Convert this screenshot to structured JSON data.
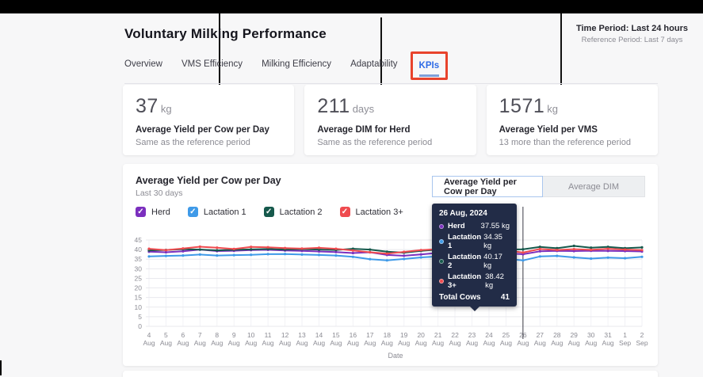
{
  "page": {
    "title": "Voluntary Milking Performance"
  },
  "time_period": {
    "label": "Time Period: Last 24 hours",
    "reference": "Reference Period: Last 7 days"
  },
  "tabs": [
    {
      "label": "Overview",
      "active": false
    },
    {
      "label": "VMS Efficiency",
      "active": false
    },
    {
      "label": "Milking Efficiency",
      "active": false
    },
    {
      "label": "Adaptability",
      "active": false
    },
    {
      "label": "KPIs",
      "active": true,
      "highlighted": true
    }
  ],
  "kpi_cards": [
    {
      "value": "37",
      "unit": "kg",
      "label": "Average Yield per Cow per Day",
      "comparison": "Same as the reference period"
    },
    {
      "value": "211",
      "unit": "days",
      "label": "Average DIM for Herd",
      "comparison": "Same as the reference period"
    },
    {
      "value": "1571",
      "unit": "kg",
      "label": "Average Yield per VMS",
      "comparison": "13 more than the reference period"
    }
  ],
  "chart_panel": {
    "title": "Average Yield per Cow per Day",
    "subtitle": "Last 30 days",
    "toggle": [
      {
        "label": "Average Yield per Cow per Day",
        "active": true
      },
      {
        "label": "Average DIM",
        "active": false
      }
    ],
    "legend": [
      {
        "label": "Herd",
        "checked": true
      },
      {
        "label": "Lactation 1",
        "checked": true
      },
      {
        "label": "Lactation 2",
        "checked": true
      },
      {
        "label": "Lactation 3+",
        "checked": true
      }
    ],
    "checkmark": "✓",
    "tooltip": {
      "title": "26 Aug, 2024",
      "rows": [
        {
          "name": "Herd",
          "value": "37.55 kg"
        },
        {
          "name": "Lactation 1",
          "value": "34.35 kg"
        },
        {
          "name": "Lactation 2",
          "value": "40.17 kg"
        },
        {
          "name": "Lactation 3+",
          "value": "38.42 kg"
        }
      ],
      "total_label": "Total Cows",
      "total_value": "41"
    }
  },
  "chart_data": {
    "type": "line",
    "title": "Average Yield per Cow per Day",
    "subtitle": "Last 30 days",
    "xlabel": "Date",
    "ylabel": "",
    "ylim": [
      0,
      45
    ],
    "ytick_step": 5,
    "grid": true,
    "legend_position": "top-left",
    "hover_index": 22,
    "x": [
      "4 Aug",
      "5 Aug",
      "6 Aug",
      "7 Aug",
      "8 Aug",
      "9 Aug",
      "10 Aug",
      "11 Aug",
      "12 Aug",
      "13 Aug",
      "14 Aug",
      "15 Aug",
      "16 Aug",
      "17 Aug",
      "18 Aug",
      "19 Aug",
      "20 Aug",
      "21 Aug",
      "22 Aug",
      "23 Aug",
      "24 Aug",
      "25 Aug",
      "26 Aug",
      "27 Aug",
      "28 Aug",
      "29 Aug",
      "30 Aug",
      "31 Aug",
      "1 Sep",
      "2 Sep"
    ],
    "series": [
      {
        "name": "Herd",
        "color": "#7b2fbe",
        "values": [
          38.9,
          38.6,
          39.1,
          40.0,
          39.2,
          39.4,
          39.7,
          39.9,
          39.5,
          39.3,
          39.0,
          38.7,
          38.2,
          38.6,
          37.2,
          36.8,
          37.5,
          38.3,
          38.7,
          38.9,
          38.5,
          38.1,
          37.55,
          39.1,
          39.3,
          39.2,
          39.4,
          39.3,
          39.2,
          39.0
        ]
      },
      {
        "name": "Lactation 1",
        "color": "#3f9ae8",
        "values": [
          36.4,
          36.7,
          36.9,
          37.4,
          36.9,
          37.1,
          37.3,
          37.6,
          37.7,
          37.4,
          37.2,
          36.9,
          36.2,
          35.0,
          34.4,
          35.1,
          35.9,
          36.4,
          36.2,
          35.9,
          35.7,
          35.2,
          34.35,
          36.4,
          36.7,
          35.9,
          35.3,
          35.8,
          35.5,
          36.2
        ]
      },
      {
        "name": "Lactation 2",
        "color": "#16594c",
        "values": [
          39.6,
          39.8,
          40.2,
          40.0,
          39.6,
          39.9,
          40.1,
          40.3,
          40.0,
          40.2,
          40.0,
          39.8,
          40.4,
          40.0,
          38.9,
          38.4,
          39.3,
          40.0,
          40.4,
          40.1,
          40.3,
          40.0,
          40.17,
          41.4,
          40.7,
          41.9,
          41.0,
          41.4,
          40.7,
          41.1
        ]
      },
      {
        "name": "Lactation 3+",
        "color": "#ef4b4f",
        "values": [
          40.4,
          39.7,
          40.6,
          41.5,
          41.0,
          40.3,
          41.4,
          41.2,
          40.8,
          40.5,
          40.9,
          40.4,
          39.5,
          38.6,
          37.9,
          38.8,
          39.7,
          40.2,
          40.6,
          40.3,
          40.0,
          39.6,
          38.42,
          40.3,
          39.8,
          40.2,
          39.9,
          40.4,
          40.0,
          39.7
        ]
      }
    ]
  },
  "colors": {
    "tab_active": "#2e6be6",
    "annotation_box": "#e8432c",
    "tooltip_bg": "#222c47",
    "grid_line": "#e9e9ee",
    "axis_text": "#8b8b93"
  }
}
